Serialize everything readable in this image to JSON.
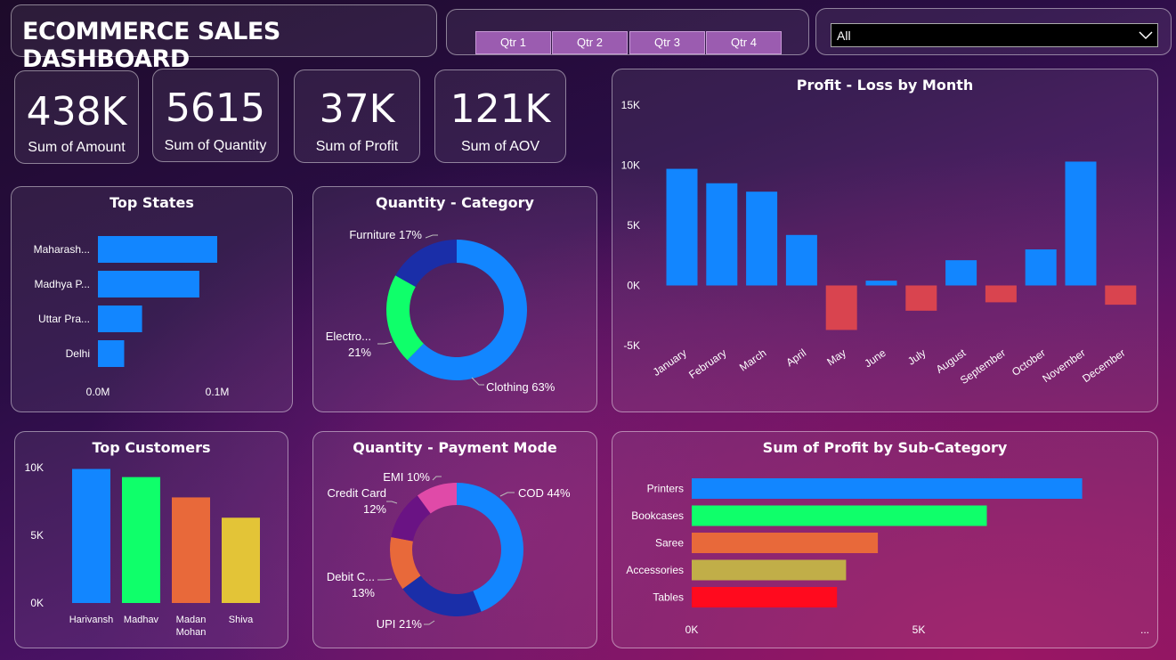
{
  "header": {
    "title": "ECOMMERCE SALES DASHBOARD"
  },
  "quarters": [
    "Qtr 1",
    "Qtr 2",
    "Qtr 3",
    "Qtr 4"
  ],
  "filter": {
    "value": "All"
  },
  "kpis": [
    {
      "value": "438K",
      "label": "Sum of Amount"
    },
    {
      "value": "5615",
      "label": "Sum of Quantity"
    },
    {
      "value": "37K",
      "label": "Sum of Profit"
    },
    {
      "value": "121K",
      "label": "Sum of AOV"
    }
  ],
  "colors": {
    "blue": "#1286ff",
    "red": "#d9444f",
    "green": "#0fff6a",
    "orange": "#e8693a",
    "yellow": "#e3c437",
    "navy": "#1a2ea8",
    "purple": "#6a1384",
    "pink": "#e04aa8",
    "olive": "#c1ae48",
    "brightred": "#ff0a1e"
  },
  "chart_data": [
    {
      "id": "top_states",
      "type": "bar",
      "orientation": "horizontal",
      "title": "Top States",
      "categories": [
        "Maharash...",
        "Madhya P...",
        "Uttar Pra...",
        "Delhi"
      ],
      "values": [
        0.1,
        0.085,
        0.037,
        0.022
      ],
      "ticks": [
        "0.0M",
        "0.1M"
      ],
      "xlim": [
        0,
        0.1
      ]
    },
    {
      "id": "quantity_category",
      "type": "pie",
      "donut": true,
      "title": "Quantity - Category",
      "slices": [
        {
          "name": "Clothing",
          "label": "Clothing 63%",
          "value": 63,
          "color": "#1286ff"
        },
        {
          "name": "Electro...",
          "label": "Electro... 21%",
          "value": 21,
          "color": "#0fff6a"
        },
        {
          "name": "Furniture",
          "label": "Furniture 17%",
          "value": 17,
          "color": "#1a2ea8"
        }
      ]
    },
    {
      "id": "profit_loss_month",
      "type": "bar",
      "title": "Profit - Loss by Month",
      "categories": [
        "January",
        "February",
        "March",
        "April",
        "May",
        "June",
        "July",
        "August",
        "September",
        "October",
        "November",
        "December"
      ],
      "values": [
        9700,
        8500,
        7800,
        4200,
        -3700,
        400,
        -2100,
        2100,
        -1400,
        3000,
        10300,
        -1600
      ],
      "yticks": [
        "15K",
        "10K",
        "5K",
        "0K",
        "-5K"
      ],
      "ylim": [
        -5000,
        15000
      ],
      "positive_color": "#1286ff",
      "negative_color": "#d9444f"
    },
    {
      "id": "top_customers",
      "type": "bar",
      "title": "Top Customers",
      "categories": [
        "Harivansh",
        "Madhav",
        "Madan Mohan",
        "Shiva"
      ],
      "values": [
        9900,
        9300,
        7800,
        6300
      ],
      "colors": [
        "#1286ff",
        "#0fff6a",
        "#e8693a",
        "#e3c437"
      ],
      "yticks": [
        "10K",
        "5K",
        "0K"
      ],
      "ylim": [
        0,
        10000
      ]
    },
    {
      "id": "quantity_payment",
      "type": "pie",
      "donut": true,
      "title": "Quantity - Payment Mode",
      "slices": [
        {
          "name": "COD",
          "label": "COD 44%",
          "value": 44,
          "color": "#1286ff"
        },
        {
          "name": "UPI",
          "label": "UPI 21%",
          "value": 21,
          "color": "#1a2ea8"
        },
        {
          "name": "Debit C...",
          "label": "Debit C... 13%",
          "value": 13,
          "color": "#e8693a"
        },
        {
          "name": "Credit Card",
          "label": "Credit Card 12%",
          "value": 12,
          "color": "#6a1384"
        },
        {
          "name": "EMI",
          "label": "EMI 10%",
          "value": 10,
          "color": "#e04aa8"
        }
      ]
    },
    {
      "id": "profit_subcategory",
      "type": "bar",
      "orientation": "horizontal",
      "title": "Sum of Profit by Sub-Category",
      "categories": [
        "Printers",
        "Bookcases",
        "Saree",
        "Accessories",
        "Tables"
      ],
      "values": [
        8600,
        6500,
        4100,
        3400,
        3200
      ],
      "colors": [
        "#1286ff",
        "#0fff6a",
        "#e8693a",
        "#c1ae48",
        "#ff0a1e"
      ],
      "ticks": [
        "0K",
        "5K"
      ],
      "xlim": [
        0,
        10000
      ],
      "more": "..."
    }
  ]
}
